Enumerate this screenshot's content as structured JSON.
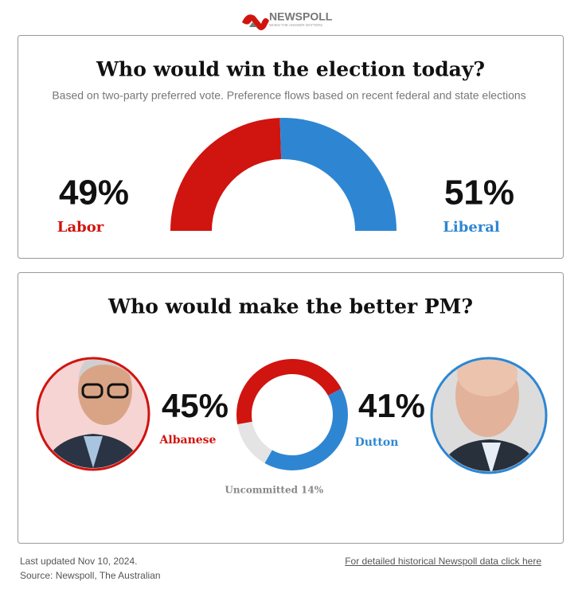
{
  "header": {
    "logo": "NEWSPOLL",
    "tagline": "WHEN THE ANSWER MATTERS"
  },
  "chart_data": [
    {
      "type": "half-donut",
      "title": "Who would win the election today?",
      "subtitle": "Based on two-party preferred vote. Preference flows based on recent federal and state elections",
      "categories": [
        "Labor",
        "Liberal"
      ],
      "values": [
        49,
        51
      ],
      "value_labels": [
        "49%",
        "51%"
      ],
      "colors": [
        "#d0140f",
        "#2e86d2"
      ]
    },
    {
      "type": "donut",
      "title": "Who would make the better PM?",
      "categories": [
        "Albanese",
        "Dutton",
        "Uncommitted"
      ],
      "values": [
        45,
        41,
        14
      ],
      "value_labels": [
        "45%",
        "41%",
        "14%"
      ],
      "colors": [
        "#d0140f",
        "#2e86d2",
        "#e4e4e4"
      ]
    }
  ],
  "footer": {
    "updated": "Last updated Nov 10, 2024.",
    "source": "Source: Newspoll, The Australian",
    "link": "For detailed historical Newspoll data click here"
  }
}
